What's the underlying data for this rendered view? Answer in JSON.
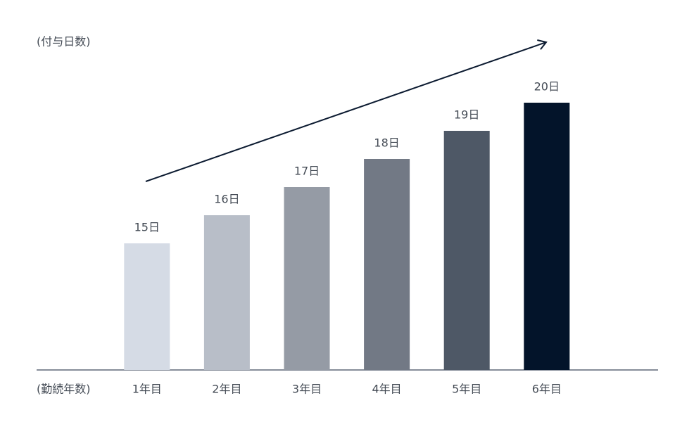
{
  "chart_data": {
    "type": "bar",
    "y_label": "(付与日数)",
    "x_label": "(勤続年数)",
    "categories": [
      "1年目",
      "2年目",
      "3年目",
      "4年目",
      "5年目",
      "6年目"
    ],
    "values": [
      15,
      16,
      17,
      18,
      19,
      20
    ],
    "value_labels": [
      "15日",
      "16日",
      "17日",
      "18日",
      "19日",
      "20日"
    ],
    "colors": [
      "#d5dbe5",
      "#b8bec8",
      "#959ba5",
      "#727985",
      "#4e5866",
      "#03142a"
    ],
    "ylim": [
      10.5,
      22
    ]
  }
}
